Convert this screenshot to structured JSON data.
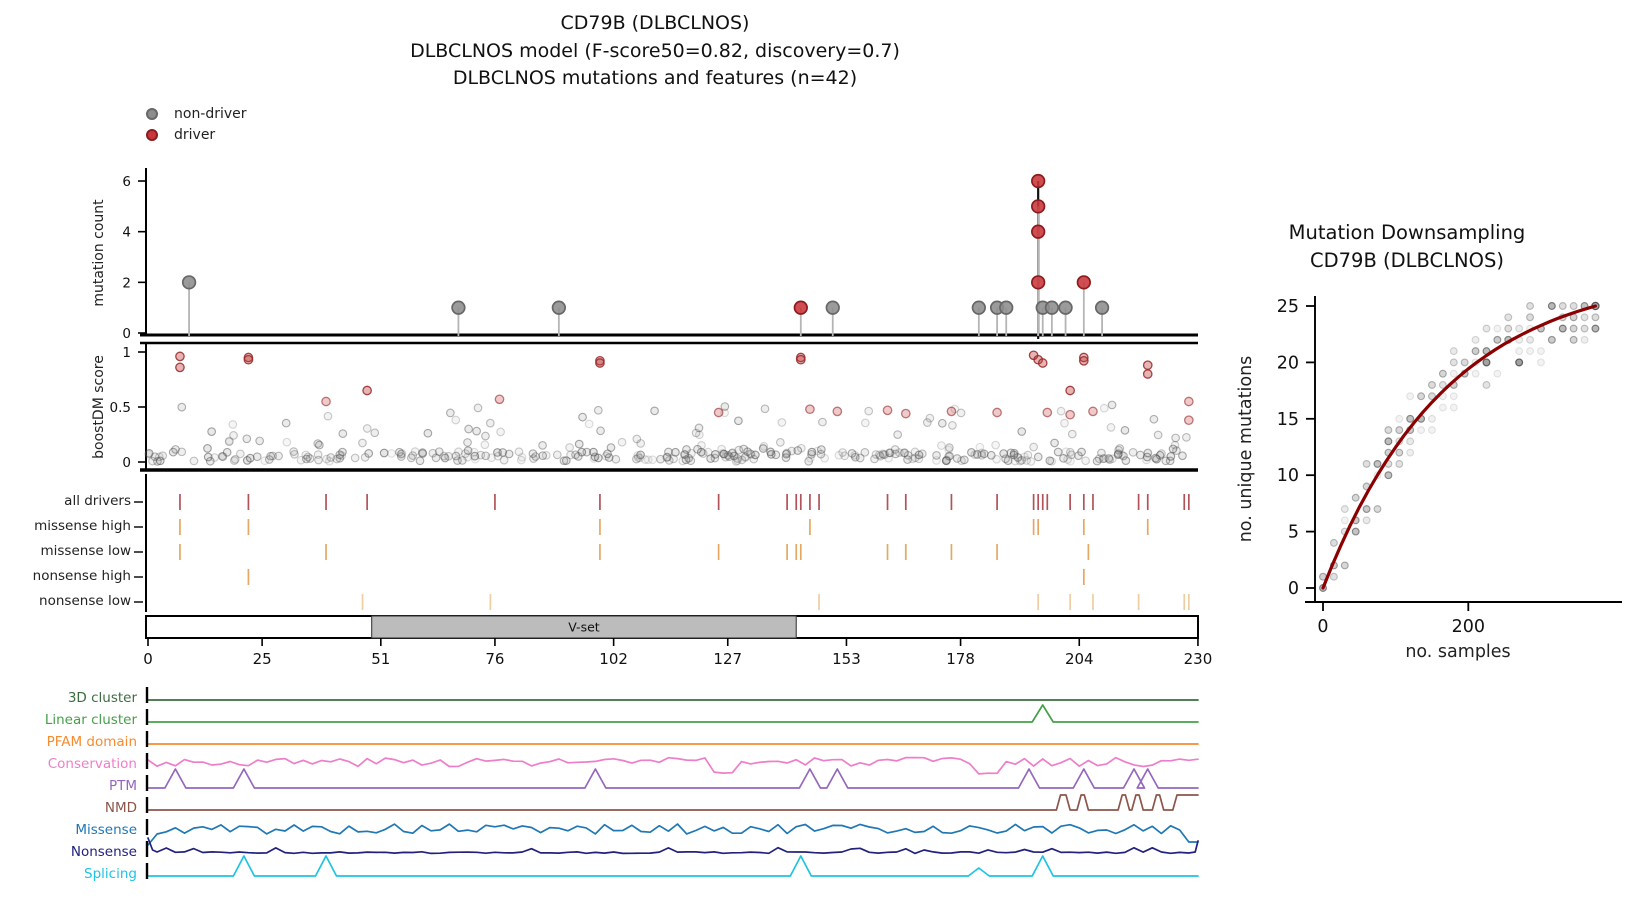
{
  "figure": {
    "title_line1": "CD79B (DLBCLNOS)",
    "title_line2": "DLBCLNOS model (F-score50=0.82, discovery=0.7)",
    "title_line3": "DLBCLNOS mutations and features (n=42)"
  },
  "legend": {
    "non_driver": "non-driver",
    "driver": "driver",
    "non_driver_color": "#8d8d8d",
    "non_driver_edge": "#676767",
    "driver_color": "#c9353a",
    "driver_edge": "#8c1b1e"
  },
  "axis_labels": {
    "mutation_count": "mutation count",
    "boostdm_score": "boostDM score",
    "unique_mutations": "no. unique mutations",
    "samples": "no. samples"
  },
  "chart_data": [
    {
      "id": "lollipop",
      "type": "lollipop",
      "ylabel": "mutation count",
      "yticks": [
        0,
        2,
        4,
        6
      ],
      "xlim": [
        0,
        230
      ],
      "points": [
        {
          "pos": 9,
          "count": 2,
          "cls": "non-driver"
        },
        {
          "pos": 68,
          "count": 1,
          "cls": "non-driver"
        },
        {
          "pos": 90,
          "count": 1,
          "cls": "non-driver"
        },
        {
          "pos": 143,
          "count": 1,
          "cls": "driver"
        },
        {
          "pos": 150,
          "count": 1,
          "cls": "non-driver"
        },
        {
          "pos": 182,
          "count": 1,
          "cls": "non-driver"
        },
        {
          "pos": 186,
          "count": 1,
          "cls": "non-driver"
        },
        {
          "pos": 188,
          "count": 1,
          "cls": "non-driver"
        },
        {
          "pos": 195,
          "count": 6,
          "cls": "driver",
          "stem": "black"
        },
        {
          "pos": 195,
          "count": 5,
          "cls": "driver"
        },
        {
          "pos": 195,
          "count": 4,
          "cls": "driver"
        },
        {
          "pos": 195,
          "count": 2,
          "cls": "driver"
        },
        {
          "pos": 196,
          "count": 1,
          "cls": "non-driver"
        },
        {
          "pos": 198,
          "count": 1,
          "cls": "non-driver"
        },
        {
          "pos": 201,
          "count": 1,
          "cls": "non-driver"
        },
        {
          "pos": 205,
          "count": 2,
          "cls": "driver"
        },
        {
          "pos": 209,
          "count": 1,
          "cls": "non-driver"
        }
      ]
    },
    {
      "id": "boostdm",
      "type": "scatter",
      "ylabel": "boostDM score",
      "yticks": [
        0,
        0.5,
        1
      ],
      "xlim": [
        0,
        230
      ],
      "ylim": [
        0,
        1
      ],
      "driver_points": [
        [
          7,
          0.96
        ],
        [
          7,
          0.86
        ],
        [
          22,
          0.95
        ],
        [
          22,
          0.93
        ],
        [
          39,
          0.55
        ],
        [
          48,
          0.65
        ],
        [
          77,
          0.57
        ],
        [
          99,
          0.92
        ],
        [
          99,
          0.9
        ],
        [
          125,
          0.45
        ],
        [
          143,
          0.95
        ],
        [
          143,
          0.93
        ],
        [
          145,
          0.48
        ],
        [
          151,
          0.46
        ],
        [
          162,
          0.47
        ],
        [
          166,
          0.44
        ],
        [
          176,
          0.46
        ],
        [
          186,
          0.45
        ],
        [
          194,
          0.97
        ],
        [
          195,
          0.93
        ],
        [
          196,
          0.9
        ],
        [
          197,
          0.45
        ],
        [
          202,
          0.65
        ],
        [
          202,
          0.43
        ],
        [
          205,
          0.95
        ],
        [
          205,
          0.92
        ],
        [
          207,
          0.46
        ],
        [
          219,
          0.88
        ],
        [
          219,
          0.8
        ],
        [
          228,
          0.55
        ],
        [
          228,
          0.38
        ]
      ],
      "background": {
        "seed": 7,
        "n_low": 270,
        "low_range": [
          0.005,
          0.095
        ],
        "n_mid": 100,
        "mid_max": 0.52
      }
    },
    {
      "id": "driver_tracks",
      "type": "tick-tracks",
      "rows": [
        {
          "label": "all drivers",
          "color": "#ad4a50",
          "ticks": [
            7,
            22,
            39,
            48,
            76,
            99,
            125,
            140,
            142,
            143,
            145,
            147,
            162,
            166,
            176,
            186,
            194,
            195,
            196,
            197,
            202,
            205,
            207,
            217,
            219,
            227,
            228
          ]
        },
        {
          "label": "missense high",
          "color": "#e2a45c",
          "ticks": [
            7,
            22,
            99,
            145,
            194,
            195,
            205,
            219
          ]
        },
        {
          "label": "missense low",
          "color": "#e2a45c",
          "ticks": [
            7,
            39,
            99,
            125,
            140,
            142,
            143,
            162,
            166,
            176,
            186,
            206
          ]
        },
        {
          "label": "nonsense high",
          "color": "#e2a45c",
          "ticks": [
            22,
            205
          ]
        },
        {
          "label": "nonsense low",
          "color": "#eccb9b",
          "ticks": [
            47,
            75,
            147,
            195,
            202,
            207,
            217,
            227,
            228
          ]
        }
      ]
    },
    {
      "id": "domain",
      "type": "domain-bar",
      "domains": [
        {
          "name": "V-set",
          "start": 49,
          "end": 142,
          "color": "#bcbcbc"
        }
      ],
      "xticks": [
        0,
        25,
        51,
        76,
        102,
        127,
        153,
        178,
        204,
        230
      ]
    },
    {
      "id": "features",
      "type": "feature-tracks",
      "tracks": [
        {
          "label": "3D cluster",
          "color": "#3c6d3f",
          "kind": "flat"
        },
        {
          "label": "Linear cluster",
          "color": "#46a049",
          "kind": "peaks",
          "peaks": [
            {
              "pos": 196,
              "h": 17
            }
          ]
        },
        {
          "label": "PFAM domain",
          "color": "#f78b2e",
          "kind": "flat"
        },
        {
          "label": "Conservation",
          "color": "#ee7ec9",
          "kind": "noisy",
          "seed": 3,
          "amp": 9,
          "lift": 4,
          "dips": [
            126,
            184
          ]
        },
        {
          "label": "PTM",
          "color": "#9467bd",
          "kind": "peaks",
          "peaks": [
            {
              "pos": 6,
              "h": 19
            },
            {
              "pos": 21,
              "h": 19
            },
            {
              "pos": 98,
              "h": 19
            },
            {
              "pos": 145,
              "h": 19
            },
            {
              "pos": 151,
              "h": 19
            },
            {
              "pos": 193,
              "h": 19
            },
            {
              "pos": 205,
              "h": 19
            },
            {
              "pos": 216,
              "h": 19
            },
            {
              "pos": 219,
              "h": 19
            }
          ]
        },
        {
          "label": "NMD",
          "color": "#8c564b",
          "kind": "bumps",
          "h": 15,
          "bumps": [
            [
              199,
              202
            ],
            [
              203.5,
              206
            ],
            [
              212.5,
              215
            ],
            [
              215.5,
              218
            ],
            [
              220,
              222.5
            ],
            [
              224.5,
              230
            ]
          ]
        },
        {
          "label": "Missense",
          "color": "#1f77b4",
          "kind": "noisy",
          "seed": 5,
          "amp": 10,
          "lift": 3,
          "start_rise": true,
          "end_drop": true
        },
        {
          "label": "Nonsense",
          "color": "#22227d",
          "kind": "nonsense",
          "seed": 9
        },
        {
          "label": "Splicing",
          "color": "#1fc3e3",
          "kind": "peaks",
          "peaks": [
            {
              "pos": 21,
              "h": 20
            },
            {
              "pos": 39,
              "h": 20
            },
            {
              "pos": 143,
              "h": 20
            },
            {
              "pos": 182,
              "h": 8
            },
            {
              "pos": 196,
              "h": 20
            }
          ]
        }
      ]
    },
    {
      "id": "downsampling",
      "type": "scatter-line",
      "title_line1": "Mutation Downsampling",
      "title_line2": "CD79B (DLBCLNOS)",
      "xlabel": "no. samples",
      "ylabel": "no. unique mutations",
      "xticks": [
        0,
        200
      ],
      "yticks": [
        0,
        5,
        10,
        15,
        20,
        25
      ],
      "xlim": [
        0,
        400
      ],
      "ylim": [
        0,
        25
      ],
      "curve": {
        "color": "#8b0000",
        "max_x": 375,
        "max_y": 25,
        "tau": 170
      },
      "dots": {
        "seed": 11,
        "col_step": 15,
        "n_cols": 26,
        "spread": 3.2
      }
    }
  ]
}
